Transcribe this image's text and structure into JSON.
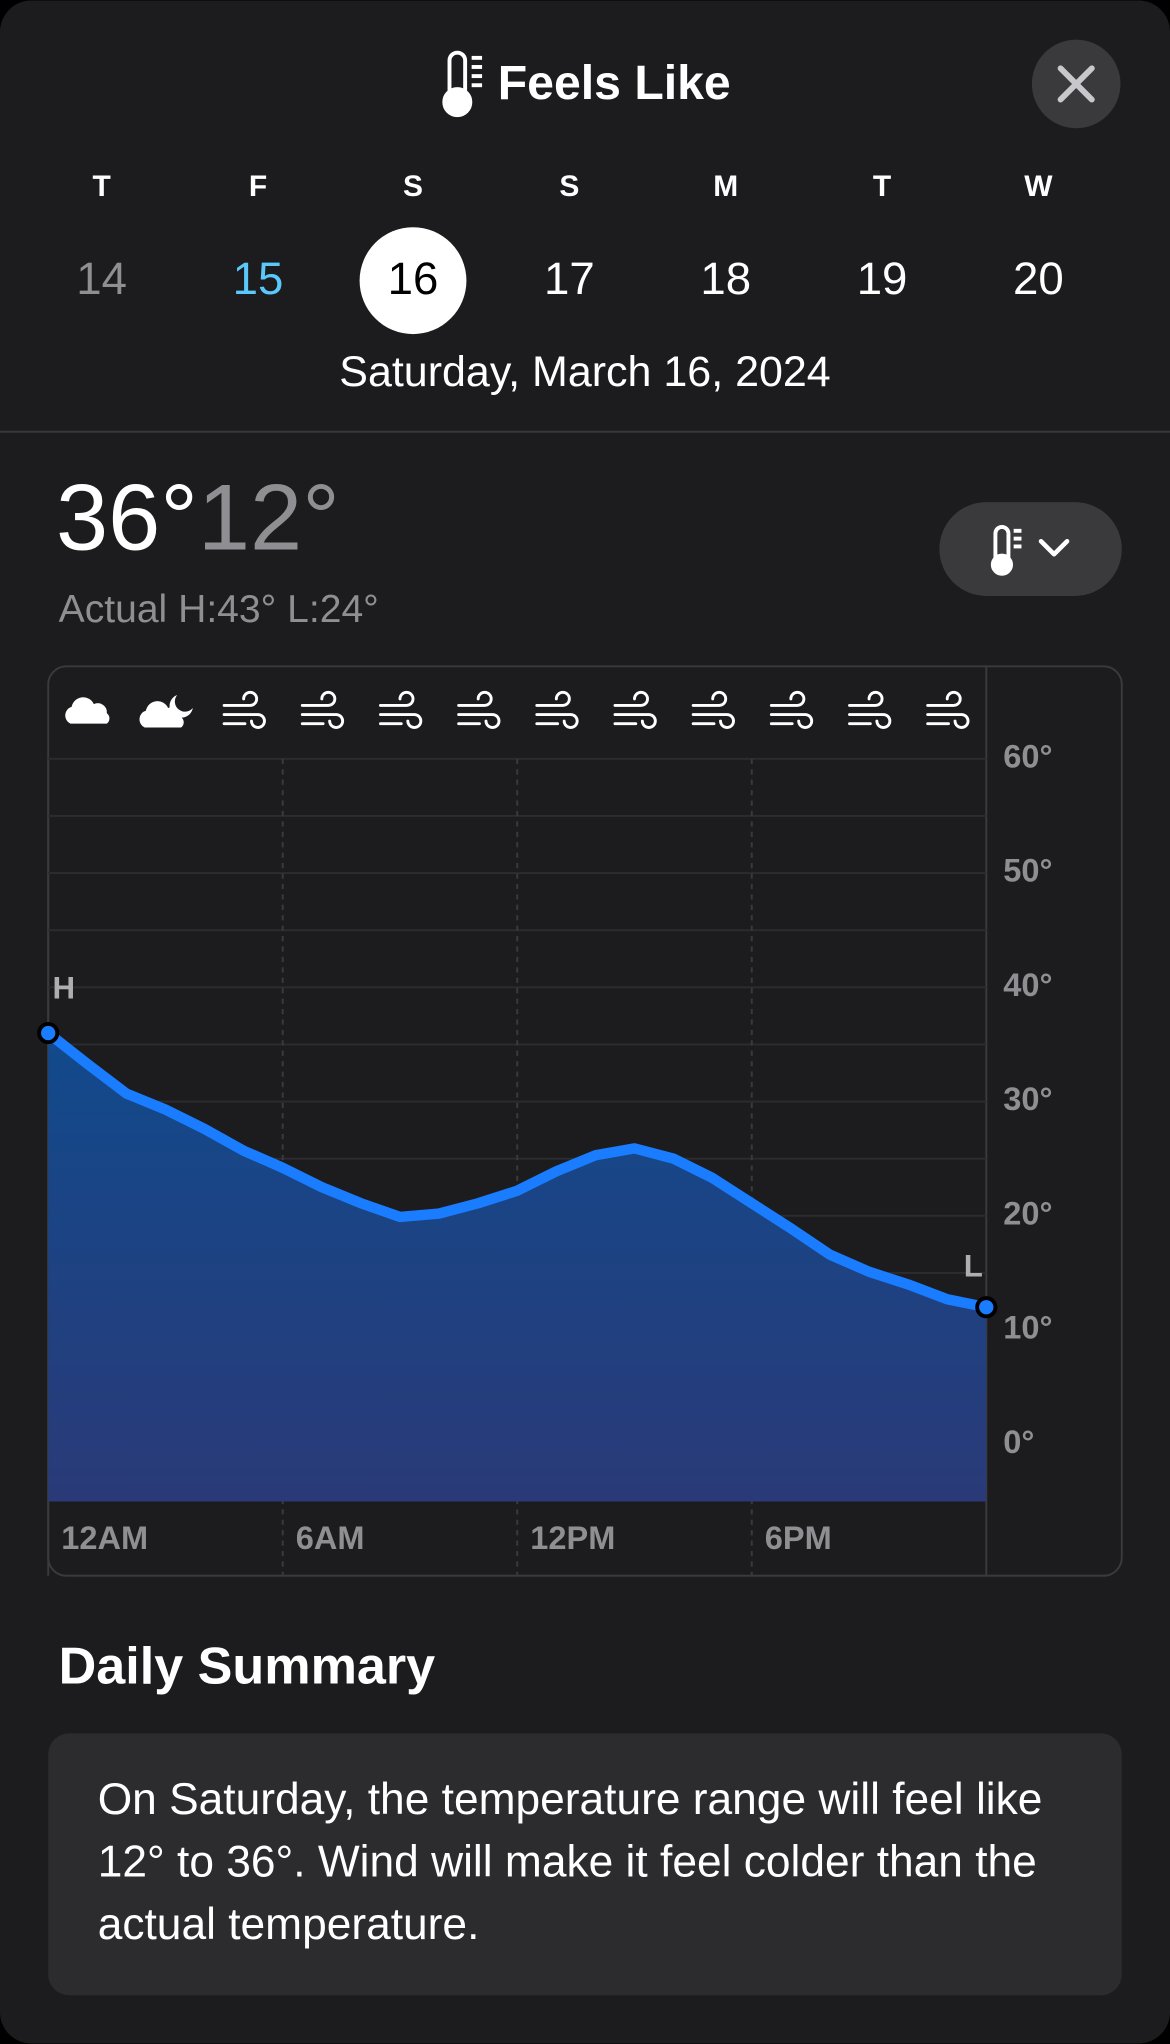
{
  "header": {
    "title": "Feels Like"
  },
  "days": [
    {
      "weekday": "T",
      "date": "14"
    },
    {
      "weekday": "F",
      "date": "15"
    },
    {
      "weekday": "S",
      "date": "16"
    },
    {
      "weekday": "S",
      "date": "17"
    },
    {
      "weekday": "M",
      "date": "18"
    },
    {
      "weekday": "T",
      "date": "19"
    },
    {
      "weekday": "W",
      "date": "20"
    }
  ],
  "selected_date": "Saturday, March 16, 2024",
  "summary": {
    "high": "36°",
    "low": "12°",
    "actual": "Actual H:43° L:24°"
  },
  "chart_data": {
    "type": "area",
    "x": [
      0,
      1,
      2,
      3,
      4,
      5,
      6,
      7,
      8,
      9,
      10,
      11,
      12,
      13,
      14,
      15,
      16,
      17,
      18,
      19,
      20,
      21,
      22,
      23,
      24
    ],
    "values": [
      36,
      33.3,
      30.7,
      29.3,
      27.6,
      25.7,
      24.2,
      22.5,
      21.1,
      19.9,
      20.2,
      21.1,
      22.2,
      23.9,
      25.3,
      25.9,
      25,
      23.3,
      21.1,
      18.9,
      16.6,
      15.1,
      14,
      12.7,
      12
    ],
    "color": "#1a7cff",
    "xlim": [
      0,
      24
    ],
    "xticks": [
      {
        "value": 0,
        "label": "12AM"
      },
      {
        "value": 6,
        "label": "6AM"
      },
      {
        "value": 12,
        "label": "12PM"
      },
      {
        "value": 18,
        "label": "6PM"
      }
    ],
    "ylim": [
      -5,
      60
    ],
    "yticks": [
      {
        "value": 0,
        "label": "0°"
      },
      {
        "value": 10,
        "label": "10°"
      },
      {
        "value": 20,
        "label": "20°"
      },
      {
        "value": 30,
        "label": "30°"
      },
      {
        "value": 40,
        "label": "40°"
      },
      {
        "value": 50,
        "label": "50°"
      },
      {
        "value": 60,
        "label": "60°"
      }
    ],
    "minor_yticks": [
      5,
      15,
      25,
      35,
      45,
      55
    ],
    "grid": true,
    "high_label": "H",
    "low_label": "L"
  },
  "daily_summary": {
    "title": "Daily Summary",
    "text": "On Saturday, the temperature range will feel like 12° to 36°. Wind will make it feel colder than the actual temperature."
  }
}
